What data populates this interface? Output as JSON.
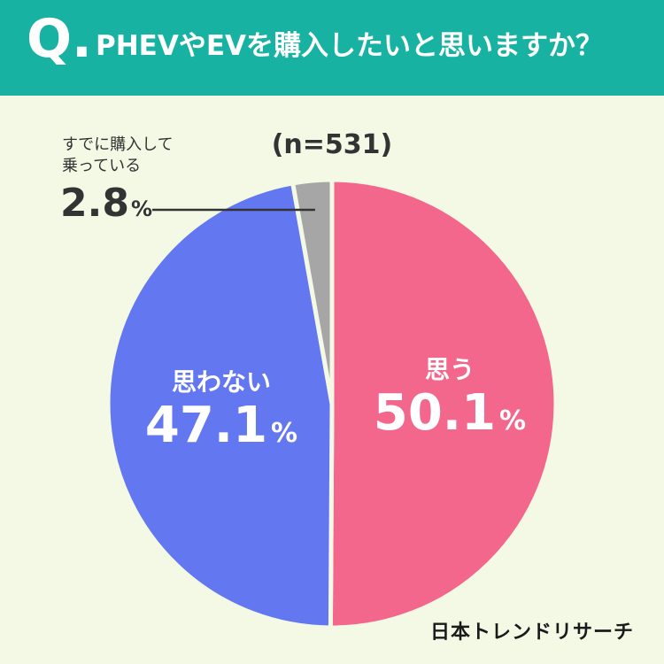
{
  "header": {
    "q_mark": "Q.",
    "question": "PHEVやEVを購入したいと思いますか？"
  },
  "chart_data": {
    "type": "pie",
    "sample_size": "(n=531)",
    "slices": [
      {
        "label": "思う",
        "value": 50.1,
        "display": "50.1",
        "color": "#f3678c"
      },
      {
        "label": "思わない",
        "value": 47.1,
        "display": "47.1",
        "color": "#6378f0"
      },
      {
        "label": "すでに購入して乗っている",
        "value": 2.8,
        "display": "2.8",
        "color": "#a6a6a6"
      }
    ],
    "unit": "%"
  },
  "note": {
    "line1": "すでに購入して",
    "line2": "乗っている"
  },
  "brand": "日本トレンドリサーチ",
  "colors": {
    "header_bg": "#17b2a1",
    "page_bg": "#f4f9e6"
  }
}
